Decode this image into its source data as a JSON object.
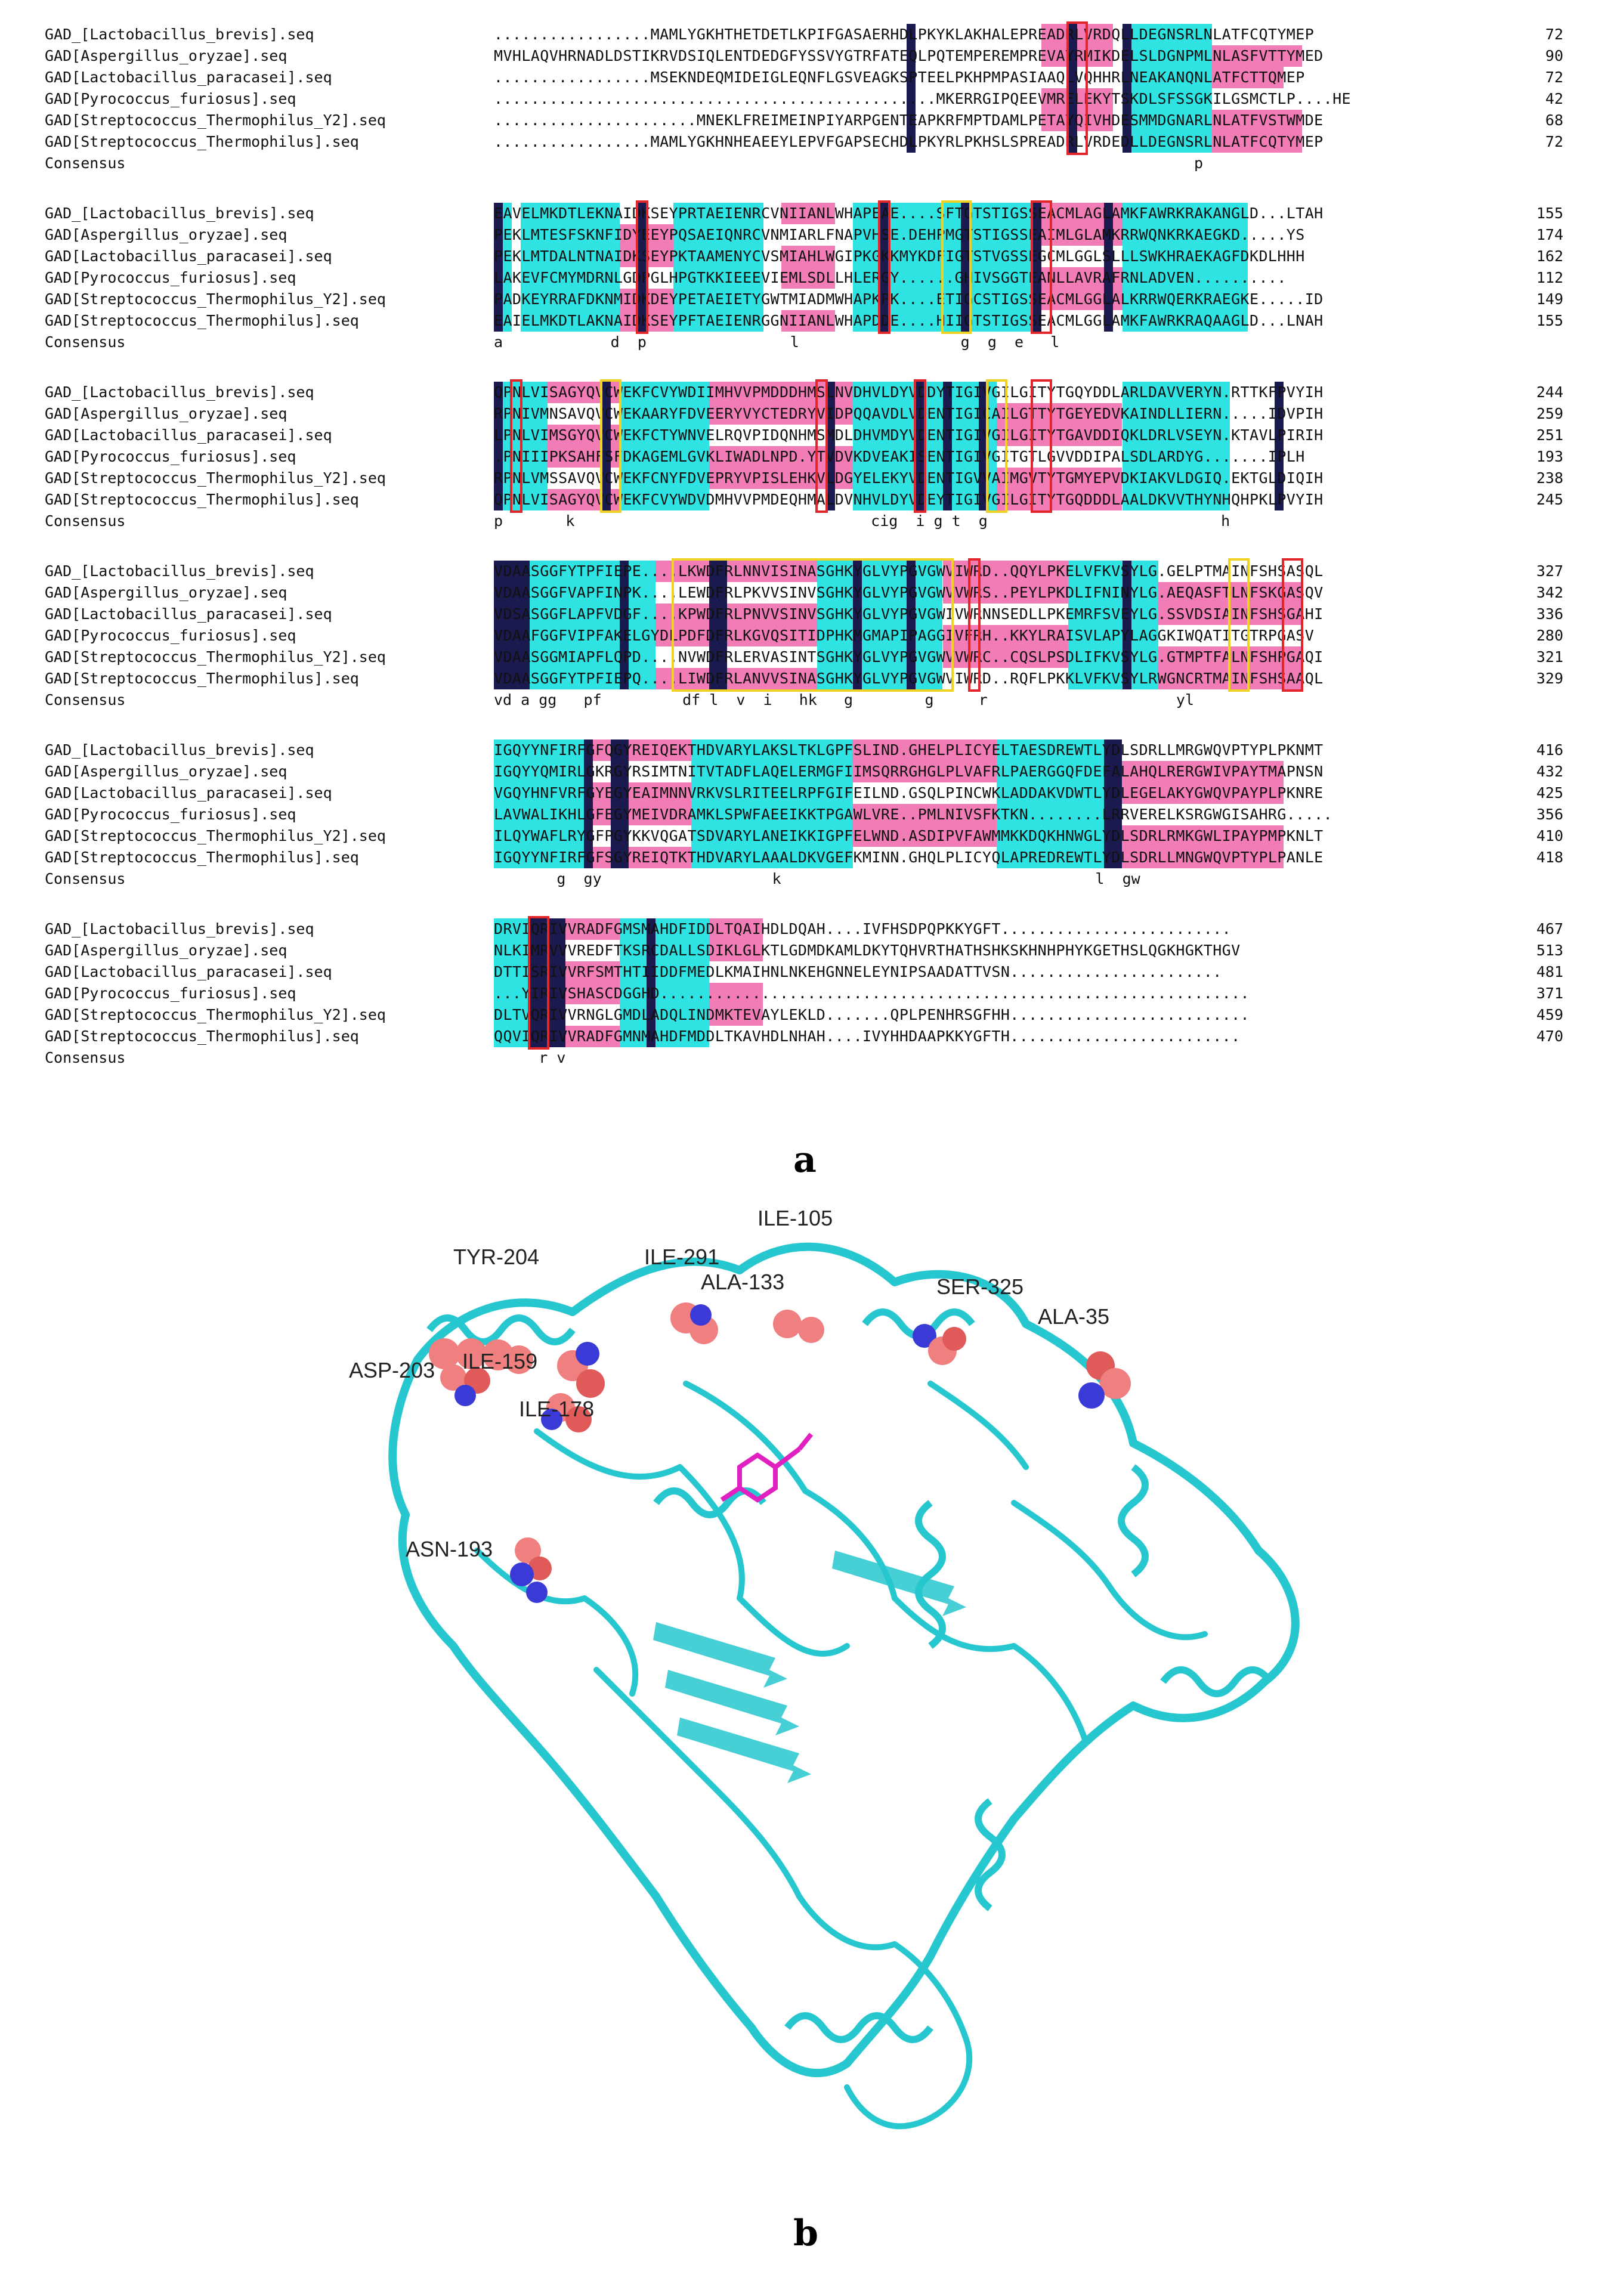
{
  "panel_a": {
    "label": "a",
    "consensus_label": "Consensus",
    "blocks": [
      {
        "rows": [
          {
            "name": "GAD_[Lactobacillus_brevis].seq",
            "seq": ".................MAMLYGKHTHETDETLKPIFGASAERHDLPKYKLAKHALEPREADRLVRDQLLDEGNSRLNLATFCQTYMEP",
            "num": "72"
          },
          {
            "name": "GAD[Aspergillus_oryzae].seq",
            "seq": "MVHLAQVHRNADLDSTIKRVDSIQLENTDEDGFYSSVYGTRFATEQLPQTEMPEREMPREVAYRMIKDELSLDGNPMLNLASFVTTYMED",
            "num": "90"
          },
          {
            "name": "GAD[Lactobacillus_paracasei].seq",
            "seq": ".................MSEKNDEQMIDEIGLEQNFLGSVEAGKSPTEELPKHPMPASIAAQLVQHHRLNEAKANQNLATFCTTQMEP",
            "num": "72"
          },
          {
            "name": "GAD[Pyrococcus_furiosus].seq",
            "seq": "................................................MKERRGIPQEEVMRELEKYTSKDLSFSSGKILGSMCTLP....HE",
            "num": "42"
          },
          {
            "name": "GAD[Streptococcus_Thermophilus_Y2].seq",
            "seq": "......................MNEKLFREIMEINPIYARPGENTEAPKRFMPTDAMLPETAYQIVHDESMMDGNARLNLATFVSTWMDE",
            "num": "68"
          },
          {
            "name": "GAD[Streptococcus_Thermophilus].seq",
            "seq": ".................MAMLYGKHNHEAEEYLEPVFGAPSECHDLPKYRLPKHSLSPREADRLVRDEDLLDEGNSRLNLATFCQTYMEP",
            "num": "72"
          }
        ],
        "consensus": "                                                                              p"
      },
      {
        "rows": [
          {
            "name": "GAD_[Lactobacillus_brevis].seq",
            "seq": "EAVELMKDTLEKNAIDKSEYPRTAEIENRCVNIIANLWHAPEAE....SFTGTSTIGSSEACMLAGLAMKFAWRKRAKANGLD...LTAH",
            "num": "155"
          },
          {
            "name": "GAD[Aspergillus_oryzae].seq",
            "seq": "PEKLMTESFSKNFIDYEEYPQSAEIQNRCVNMIARLFNAPVHSE.DEHPMGTSTIGSSEAIMLGLAMKRRWQNKRKAEGKD.....YS",
            "num": "174"
          },
          {
            "name": "GAD[Lactobacillus_paracasei].seq",
            "seq": "PEKLMTDALNTNAIDKSEYPKTAAMENYCVSMIAHLWGIPKGKKMYKDFIGTSTVGSSEGCMLGGLSLLLSWKHRAEKAGFDKDLHHH",
            "num": "162"
          },
          {
            "name": "GAD[Pyrococcus_furiosus].seq",
            "seq": "LAKEVFCMYMDRNLGDPGLHPGTKKIEEEVIEMLSDLLHLERGY......GHIVSGGTEANLLAVRAFRNLADVEN..........",
            "num": "112"
          },
          {
            "name": "GAD[Streptococcus_Thermophilus_Y2].seq",
            "seq": "PADKEYRRAFDKNMIDKDEYPETAEIETYGWTMIADMWHAPKPK....ETIGCSTIGSSEACMLGGLALKRRWQERKRAEGKE.....ID",
            "num": "149"
          },
          {
            "name": "GAD[Streptococcus_Thermophilus].seq",
            "seq": "EAIELMKDTLAKNAIDKSEYPFTAEIENRGGNIIANLWHAPDDE....HIIGTSTIGSSEACMLGGLAMKFAWRKRAQAAGLD...LNAH",
            "num": "155"
          }
        ],
        "consensus": "a            d  p                l                  g  g  e   l"
      },
      {
        "rows": [
          {
            "name": "GAD_[Lactobacillus_brevis].seq",
            "seq": "QPNLVISAGYQVCWEKFCVYWDIIMHVVPMDDDHMSLNVDHVLDYVDDYTIGIVGILGITYTGQYDDLARLDAVVERYN.RTTKFPVYIH",
            "num": "244"
          },
          {
            "name": "GAD[Aspergillus_oryzae].seq",
            "seq": "RPNIVMNSAVQVCWEKAARYFDVEERYVYCTEDRYVIDPQQAVDLVDENTIGICAILGTTYTGEYEDVKAINDLLIERN.....IDVPIH",
            "num": "259"
          },
          {
            "name": "GAD[Lactobacillus_paracasei].seq",
            "seq": "LPNLVIMSGYQVCWEKFCTYWNVELRQVPIDQNHMSMDLDHVMDYVDENTIGIVGILGITYTGAVDDIQKLDRLVSEYN.KTAVLPIRIH",
            "num": "251"
          },
          {
            "name": "GAD[Pyrococcus_furiosus].seq",
            "seq": ".PNIIIPKSAHFSFDKAGEMLGVKLIWADLNPD.YTVDVKDVEAKISENTIGIVGITGTLGVVDDIPALSDLARDYG.......IPLH",
            "num": "193"
          },
          {
            "name": "GAD[Streptococcus_Thermophilus_Y2].seq",
            "seq": "RPNLVMSSAVQVCWEKFCNYFDVEPRYVPISLEHKVLDGYELEKYVDENTIGVVAIMGVTYTGMYEPVDKIAKVLDGIQ.EKTGLDIQIH",
            "num": "238"
          },
          {
            "name": "GAD[Streptococcus_Thermophilus].seq",
            "seq": "QPNLVISAGYQVCWEKFCVYWDVDMHVVPMDEQHMALDVNHVLDYVDEYTIGIVGILGITYTGQDDDLAALDKVVTHYNHQHPKLPVYIH",
            "num": "245"
          }
        ],
        "consensus": "p       k                                 cig  i g t  g                          h"
      },
      {
        "rows": [
          {
            "name": "GAD_[Lactobacillus_brevis].seq",
            "seq": "VDAASGGFYTPFIEPE....LKWDFRLNNVISINASGHKYGLVYPGVGWVIWRD..QQYLPKELVFKVSYLG.GELPTMAINFSHSASQL",
            "num": "327"
          },
          {
            "name": "GAD[Aspergillus_oryzae].seq",
            "seq": "VDAASGGFVAPFINPK....LEWDFRLPKVVSINVSGHKYGLVYPGVGWVVWRS..PEYLPKDLIFNINYLG.AEQASFTLNFSKGASQV",
            "num": "342"
          },
          {
            "name": "GAD[Lactobacillus_paracasei].seq",
            "seq": "VDSASGGFLAPFVDGF....KPWDFRLPNVVSINVSGHKYGLVYPGVGWIVWRNNSEDLLPKEMRFSVEYLG.SSVDSIAINFSHSGAHI",
            "num": "336"
          },
          {
            "name": "GAD[Pyrococcus_furiosus].seq",
            "seq": "VDAAFGGFVIPFAKELGYDLPDFDFRLKGVQSITIDPHKMGMAPIPAGGIVFRH..KKYLRAISVLAPYLAGGKIWQATITGTRPGASV",
            "num": "280"
          },
          {
            "name": "GAD[Streptococcus_Thermophilus_Y2].seq",
            "seq": "VDAASGGMIAPFLQPD....NVWDFRLERVASINTSGHKYGLVYPGVGWVVWRC..CQSLPSDLIFKVSYLG.GTMPTFALNFSHPGAQI",
            "num": "321"
          },
          {
            "name": "GAD[Streptococcus_Thermophilus].seq",
            "seq": "VDAASGGFYTPFIEPQ....LIWDFRLANVVSINASGHKYGLVYPGVGWVIWRD..RQFLPKKLVFKVSYLRWGNCRTMAINFSHSAAQL",
            "num": "329"
          }
        ],
        "consensus": "vd a gg   pf         df l  v  i   hk   g        g     r                     yl"
      },
      {
        "rows": [
          {
            "name": "GAD_[Lactobacillus_brevis].seq",
            "seq": "IGQYYNFIRFGFQGYREIQEKTHDVARYLAKSLTKLGPFSLIND.GHELPLICYELTAESDREWTLYDLSDRLLMRGWQVPTYPLPKNMT",
            "num": "416"
          },
          {
            "name": "GAD[Aspergillus_oryzae].seq",
            "seq": "IGQYYQMIRLGKRGYRSIMTNITVTADFLAQELERMGFIIMSQRRGHGLPLVAFRLPAERGGQFDEFALAHQLRERGWIVPAYTMAPNSN",
            "num": "432"
          },
          {
            "name": "GAD[Lactobacillus_paracasei].seq",
            "seq": "VGQYHNFVRFGYEGYEAIMNNVRKVSLRITEELRPFGIFEILND.GSQLPINCWKLADDAKVDWTLYDLEGELAKYGWQVPAYPLPKNRE",
            "num": "425"
          },
          {
            "name": "GAD[Pyrococcus_furiosus].seq",
            "seq": "LAVWALIKHLGFEGYMEIVDRAMKLSPWFAEEIKKTPGAWLVRE..PMLNIVSFKTKN........LRRVERELKSRGWGISAHRG.....",
            "num": "356"
          },
          {
            "name": "GAD[Streptococcus_Thermophilus_Y2].seq",
            "seq": "ILQYWAFLRYGFPGYKKVQGATSDVARYLANEIKKIGPFELWND.ASDIPVFAWMMKKDQKHNWGLYDLSDRLRMKGWLIPAYPMPKNLT",
            "num": "410"
          },
          {
            "name": "GAD[Streptococcus_Thermophilus].seq",
            "seq": "IGQYYNFIRFGFSGYREIQTKTHDVARYLAAALDKVGEFKMINN.GHQLPLICYQLAPREDREWTLYDLSDRLLMNGWQVPTYPLPANLE",
            "num": "418"
          }
        ],
        "consensus": "       g  gy                   k                                   l  gw"
      },
      {
        "rows": [
          {
            "name": "GAD_[Lactobacillus_brevis].seq",
            "seq": "DRVIQRIVVRADFGMSMAHDFIDDLTQAIHDLDQAH....IVFHSDPQPKKYGFT.........................",
            "num": "467"
          },
          {
            "name": "GAD[Aspergillus_oryzae].seq",
            "seq": "NLKIMRVVVREDFTKSRCDALLSDIKLGLKTLGDMDKAMLDKYTQHVRTHATHSHKSKHNHPHYKGETHSLQGKHGKTHGV",
            "num": "513"
          },
          {
            "name": "GAD[Lactobacillus_paracasei].seq",
            "seq": "DTTISRIVVRFSMTHTIIDDFMEDLKMAIHNLNKEHGNNELEYNIPSAADATTVSN.......................",
            "num": "481"
          },
          {
            "name": "GAD[Pyrococcus_furiosus].seq",
            "seq": "...YIRIVSHASCDGGHD................................................................",
            "num": "371"
          },
          {
            "name": "GAD[Streptococcus_Thermophilus_Y2].seq",
            "seq": "DLTVQRIVVRNGLGMDLADQLINDMKTEVAYLEKLD.......QPLPENHRSGFHH..........................",
            "num": "459"
          },
          {
            "name": "GAD[Streptococcus_Thermophilus].seq",
            "seq": "QQVIQRIVVRADFGMNMAHDFMDDLTKAVHDLNHAH....IVYHHDAAPKKYGFTH.........................",
            "num": "470"
          }
        ],
        "consensus": "     r v"
      }
    ]
  },
  "panel_b": {
    "label": "b",
    "residues": [
      "TYR-204",
      "ILE-291",
      "ILE-105",
      "ALA-133",
      "SER-325",
      "ALA-35",
      "ASP-203",
      "ILE-159",
      "ILE-178",
      "ASN-193"
    ]
  },
  "colors": {
    "identity": "#1a1a4e",
    "high": "#f27cb5",
    "medium": "#2fe3e3",
    "box_red": "#e3262b",
    "box_yellow": "#f0d224",
    "protein": "#27c7cf",
    "sphere_carbon": "#f08080",
    "sphere_nitrogen": "#3a3ad6",
    "ligand": "#e020c0"
  }
}
